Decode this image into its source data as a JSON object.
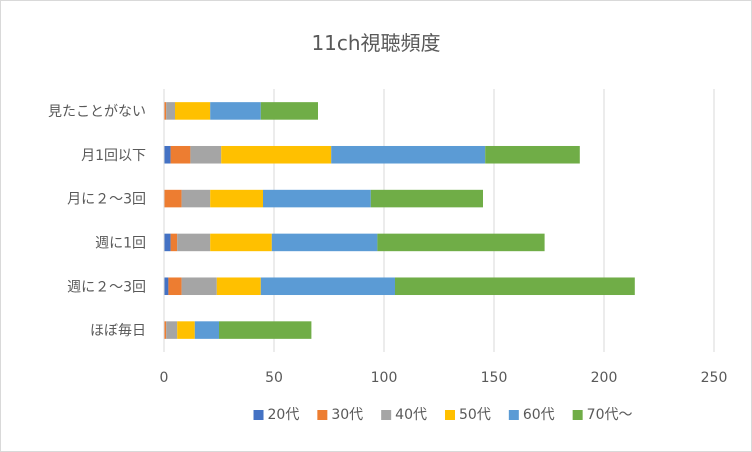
{
  "chart_data": {
    "type": "bar",
    "orientation": "horizontal",
    "stacked": true,
    "title": "11ch視聴頻度",
    "xlabel": "",
    "ylabel": "",
    "xlim": [
      0,
      250
    ],
    "x_ticks": [
      "0",
      "50",
      "100",
      "150",
      "200",
      "250"
    ],
    "grid": "vertical",
    "legend_position": "bottom",
    "categories": [
      "見たことがない",
      "月1回以下",
      "月に２～3回",
      "週に1回",
      "週に２～3回",
      "ほぼ毎日"
    ],
    "series": [
      {
        "name": "20代",
        "color": "#4472C4",
        "values": [
          0,
          3,
          0,
          3,
          2,
          0
        ]
      },
      {
        "name": "30代",
        "color": "#ED7D31",
        "values": [
          1,
          9,
          8,
          3,
          6,
          1
        ]
      },
      {
        "name": "40代",
        "color": "#A5A5A5",
        "values": [
          4,
          14,
          13,
          15,
          16,
          5
        ]
      },
      {
        "name": "50代",
        "color": "#FFC000",
        "values": [
          16,
          50,
          24,
          28,
          20,
          8
        ]
      },
      {
        "name": "60代",
        "color": "#5B9BD5",
        "values": [
          23,
          70,
          49,
          48,
          61,
          11
        ]
      },
      {
        "name": "70代～",
        "color": "#70AD47",
        "values": [
          26,
          43,
          51,
          76,
          109,
          42
        ]
      }
    ]
  }
}
